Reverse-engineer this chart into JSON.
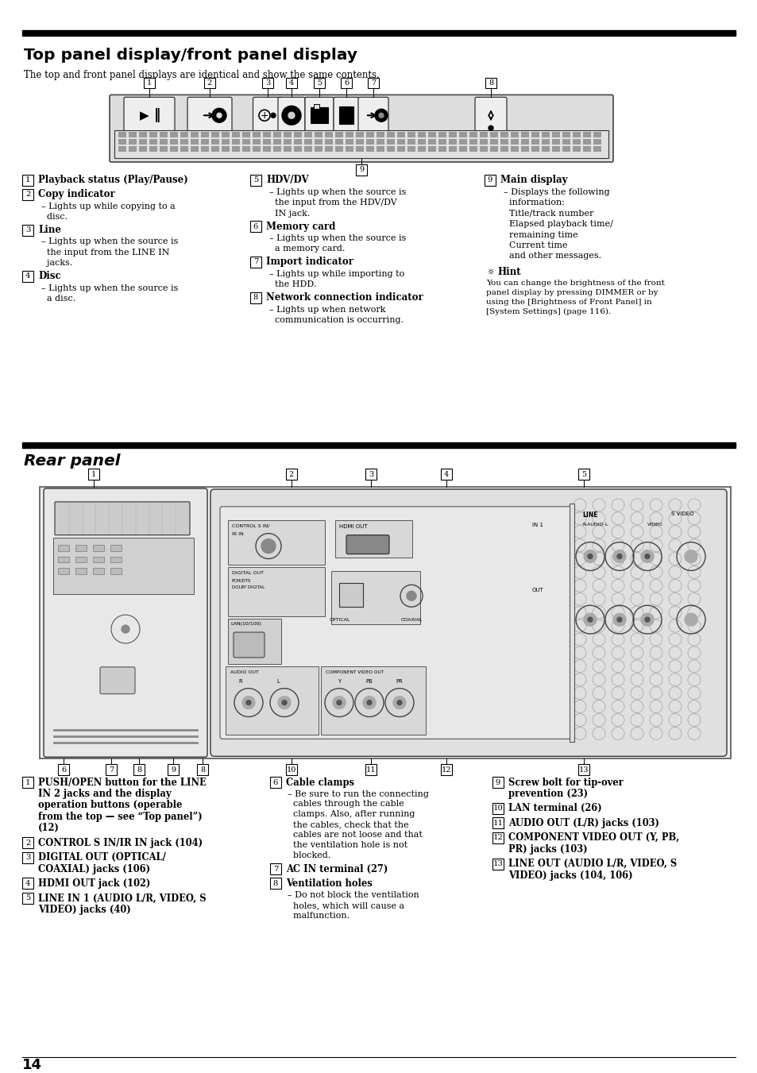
{
  "bg_color": "#ffffff",
  "title1": "Top panel display/front panel display",
  "title2": "Rear panel",
  "subtitle1": "The top and front panel displays are identical and show the same contents.",
  "page_number": "14",
  "top_items_col1": [
    {
      "num": "1",
      "label": "Playback status (Play/Pause)",
      "subs": []
    },
    {
      "num": "2",
      "label": "Copy indicator",
      "subs": [
        "– Lights up while copying to a",
        "  disc."
      ]
    },
    {
      "num": "3",
      "label": "Line",
      "subs": [
        "– Lights up when the source is",
        "  the input from the LINE IN",
        "  jacks."
      ]
    },
    {
      "num": "4",
      "label": "Disc",
      "subs": [
        "– Lights up when the source is",
        "  a disc."
      ]
    }
  ],
  "top_items_col2": [
    {
      "num": "5",
      "label": "HDV/DV",
      "subs": [
        "– Lights up when the source is",
        "  the input from the HDV/DV",
        "  IN jack."
      ]
    },
    {
      "num": "6",
      "label": "Memory card",
      "subs": [
        "– Lights up when the source is",
        "  a memory card."
      ]
    },
    {
      "num": "7",
      "label": "Import indicator",
      "subs": [
        "– Lights up while importing to",
        "  the HDD."
      ]
    },
    {
      "num": "8",
      "label": "Network connection indicator",
      "subs": [
        "– Lights up when network",
        "  communication is occurring."
      ]
    }
  ],
  "top_items_col3": [
    {
      "num": "9",
      "label": "Main display",
      "subs": [
        "– Displays the following",
        "  information:",
        "  Title/track number",
        "  Elapsed playback time/",
        "  remaining time",
        "  Current time",
        "  and other messages."
      ]
    }
  ],
  "hint_text": [
    "You can change the brightness of the front",
    "panel display by pressing DIMMER or by",
    "using the [Brightness of Front Panel] in",
    "[System Settings] (page 116)."
  ],
  "rear_items_col1": [
    {
      "num": "1",
      "label": "PUSH/OPEN button for the LINE",
      "label2": "IN 2 jacks and the display",
      "label3": "operation buttons (operable",
      "label4": "from the top — see “Top panel”)",
      "label5": "(12)",
      "subs": []
    },
    {
      "num": "2",
      "label": "CONTROL S IN/IR IN jack (104)",
      "subs": []
    },
    {
      "num": "3",
      "label": "DIGITAL OUT (OPTICAL/",
      "label2": "COAXIAL) jacks (106)",
      "subs": []
    },
    {
      "num": "4",
      "label": "HDMI OUT jack (102)",
      "subs": []
    },
    {
      "num": "5",
      "label": "LINE IN 1 (AUDIO L/R, VIDEO, S",
      "label2": "VIDEO) jacks (40)",
      "subs": []
    }
  ],
  "rear_items_col2": [
    {
      "num": "6",
      "label": "Cable clamps",
      "subs": [
        "– Be sure to run the connecting",
        "  cables through the cable",
        "  clamps. Also, after running",
        "  the cables, check that the",
        "  cables are not loose and that",
        "  the ventilation hole is not",
        "  blocked."
      ]
    },
    {
      "num": "7",
      "label": "AC IN terminal (27)",
      "subs": []
    },
    {
      "num": "8",
      "label": "Ventilation holes",
      "subs": [
        "– Do not block the ventilation",
        "  holes, which will cause a",
        "  malfunction."
      ]
    }
  ],
  "rear_items_col3": [
    {
      "num": "9",
      "label": "Screw bolt for tip-over",
      "label2": "prevention (23)",
      "subs": []
    },
    {
      "num": "10",
      "label": "LAN terminal (26)",
      "subs": []
    },
    {
      "num": "11",
      "label": "AUDIO OUT (L/R) jacks (103)",
      "subs": []
    },
    {
      "num": "12",
      "label": "COMPONENT VIDEO OUT (Y, PB,",
      "label2": "PR) jacks (103)",
      "subs": []
    },
    {
      "num": "13",
      "label": "LINE OUT (AUDIO L/R, VIDEO, S",
      "label2": "VIDEO) jacks (104, 106)",
      "subs": []
    }
  ]
}
